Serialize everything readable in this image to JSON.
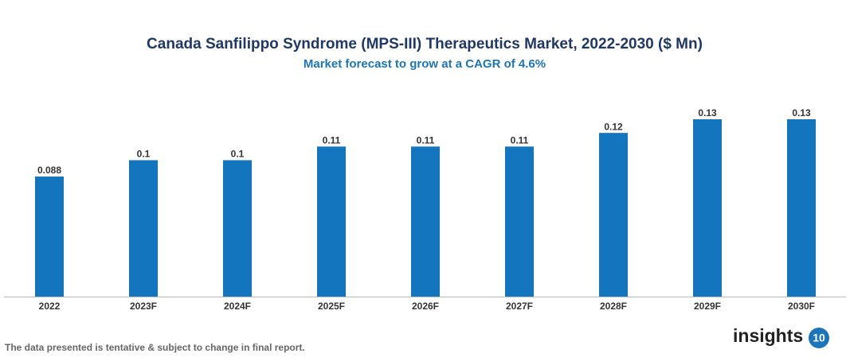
{
  "chart_data": {
    "type": "bar",
    "title": "Canada Sanfilippo Syndrome (MPS-III) Therapeutics Market, 2022-2030 ($ Mn)",
    "subtitle": "Market forecast to grow at a CAGR of 4.6%",
    "categories": [
      "2022",
      "2023F",
      "2024F",
      "2025F",
      "2026F",
      "2027F",
      "2028F",
      "2029F",
      "2030F"
    ],
    "values": [
      0.088,
      0.1,
      0.1,
      0.11,
      0.11,
      0.11,
      0.12,
      0.13,
      0.13
    ],
    "color": "#1275bd"
  },
  "footer": {
    "note": "The data presented is tentative & subject to change in final report.",
    "logo": "insights",
    "logo_badge": "10"
  }
}
